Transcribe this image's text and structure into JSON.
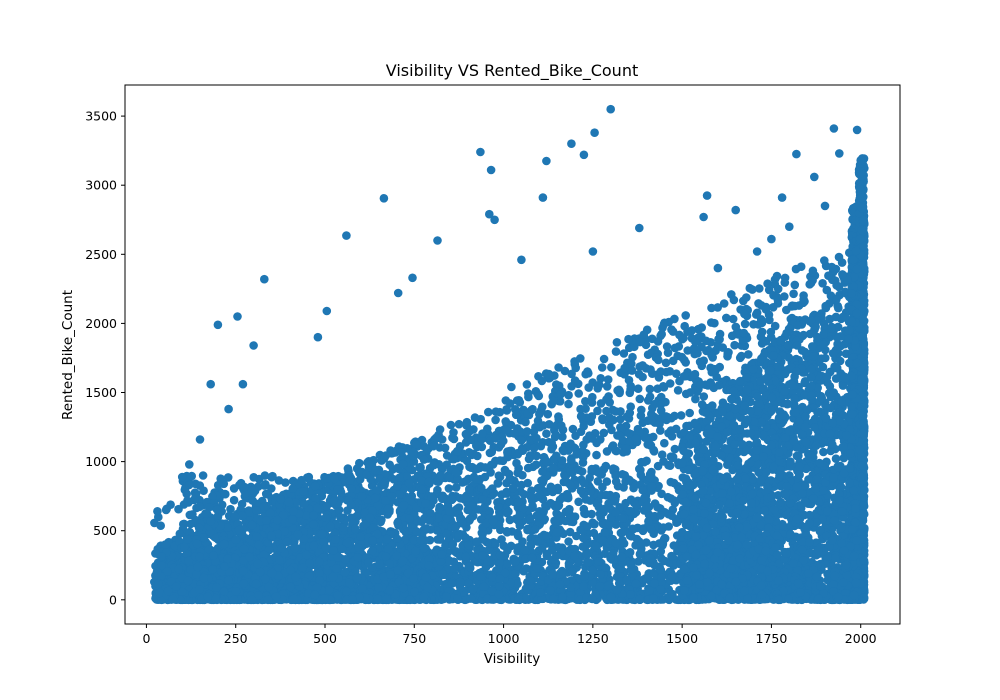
{
  "chart_data": {
    "type": "scatter",
    "title": "Visibility VS Rented_Bike_Count",
    "xlabel": "Visibility",
    "ylabel": "Rented_Bike_Count",
    "xlim": [
      -60,
      2110
    ],
    "ylim": [
      -175,
      3725
    ],
    "x_ticks": [
      0,
      250,
      500,
      750,
      1000,
      1250,
      1500,
      1750,
      2000
    ],
    "y_ticks": [
      0,
      500,
      1000,
      1500,
      2000,
      2500,
      3000,
      3500
    ],
    "grid": false,
    "legend": "none",
    "marker_color": "#1f77b4",
    "highlighted_points": {
      "x": [
        1300,
        1255,
        1120,
        1190,
        1225,
        935,
        965,
        665,
        330,
        560,
        1110,
        1820,
        1925,
        1990,
        2000,
        1570,
        1650,
        1780,
        1870,
        1940,
        200,
        255,
        480,
        505,
        705,
        745,
        815,
        960,
        975,
        1050,
        1250,
        1380,
        1560,
        1600,
        1710,
        1750,
        1800,
        1900,
        120,
        55,
        150,
        180,
        230,
        270,
        300
      ],
      "y": [
        3550,
        3380,
        3175,
        3300,
        3220,
        3240,
        3110,
        2905,
        2320,
        2635,
        2910,
        3225,
        3410,
        3400,
        3180,
        2925,
        2820,
        2910,
        3060,
        3230,
        1990,
        2050,
        1900,
        2090,
        2220,
        2330,
        2600,
        2790,
        2750,
        2460,
        2520,
        2690,
        2770,
        2400,
        2520,
        2610,
        2700,
        2850,
        980,
        650,
        1160,
        1560,
        1380,
        1560,
        1840
      ]
    }
  }
}
